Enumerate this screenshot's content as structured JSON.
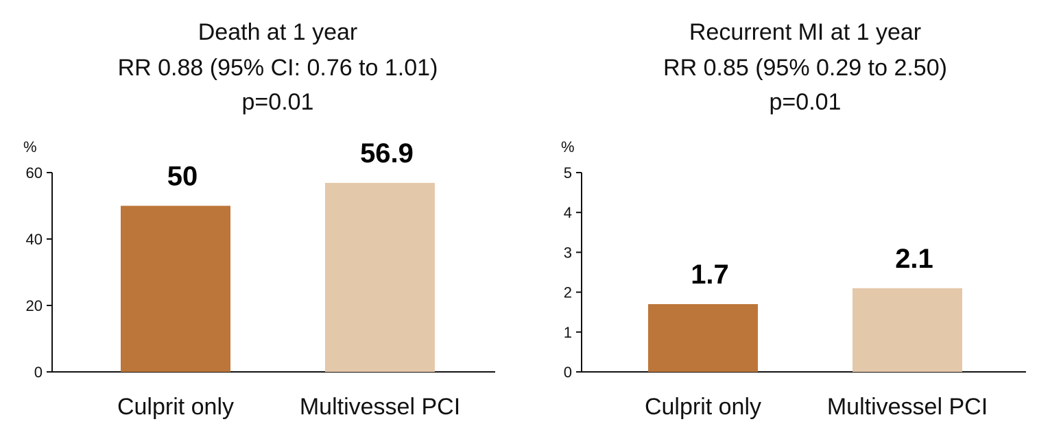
{
  "chart_data": [
    {
      "type": "bar",
      "title": [
        "Death at 1 year",
        "RR 0.88 (95% CI: 0.76 to 1.01)",
        "p=0.01"
      ],
      "ylabel": "%",
      "categories": [
        "Culprit only",
        "Multivessel PCI"
      ],
      "values": [
        50,
        56.9
      ],
      "value_labels": [
        "50",
        "56.9"
      ],
      "ylim": [
        0,
        60
      ],
      "yticks": [
        0,
        20,
        40,
        60
      ],
      "colors": [
        "#BD7639",
        "#E4C8AA"
      ],
      "grid": false
    },
    {
      "type": "bar",
      "title": [
        "Recurrent MI at 1 year",
        "RR 0.85 (95% 0.29 to 2.50)",
        "p=0.01"
      ],
      "ylabel": "%",
      "categories": [
        "Culprit only",
        "Multivessel PCI"
      ],
      "values": [
        1.7,
        2.1
      ],
      "value_labels": [
        "1.7",
        "2.1"
      ],
      "ylim": [
        0,
        5
      ],
      "yticks": [
        0,
        1,
        2,
        3,
        4,
        5
      ],
      "colors": [
        "#BD7639",
        "#E4C8AA"
      ],
      "grid": false
    }
  ]
}
